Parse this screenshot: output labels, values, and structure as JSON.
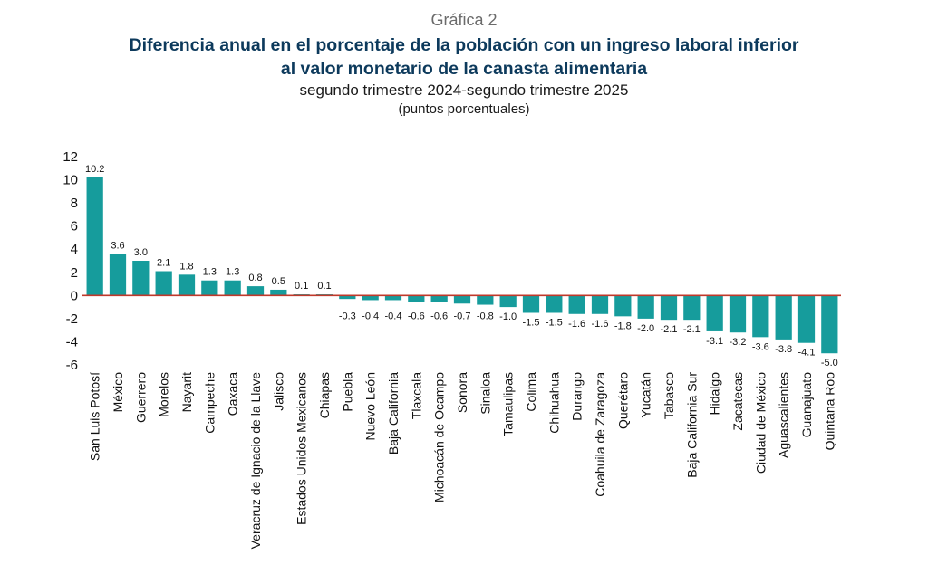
{
  "header": {
    "kicker": "Gráfica 2",
    "title_line1": "Diferencia anual en el porcentaje de la población con un ingreso laboral inferior",
    "title_line2": "al valor monetario de la canasta alimentaria",
    "subtitle_line1": "segundo trimestre 2024-segundo trimestre 2025",
    "subtitle_line2": "(puntos porcentuales)"
  },
  "colors": {
    "bar": "#169c9c",
    "zero_line": "#c0392b",
    "title": "#0d3a5c"
  },
  "chart_data": {
    "type": "bar",
    "title": "Diferencia anual en el porcentaje de la población con un ingreso laboral inferior al valor monetario de la canasta alimentaria",
    "subtitle": "segundo trimestre 2024-segundo trimestre 2025",
    "ylabel": "(puntos porcentuales)",
    "xlabel": "",
    "ylim": [
      -6,
      12
    ],
    "yticks": [
      12,
      10,
      8,
      6,
      4,
      2,
      0,
      -2,
      -4,
      -6
    ],
    "grid": false,
    "legend": "none",
    "categories": [
      "San Luis Potosí",
      "México",
      "Guerrero",
      "Morelos",
      "Nayarit",
      "Campeche",
      "Oaxaca",
      "Veracruz de Ignacio de la Llave",
      "Jalisco",
      "Estados Unidos Mexicanos",
      "Chiapas",
      "Puebla",
      "Nuevo León",
      "Baja California",
      "Tlaxcala",
      "Michoacán de Ocampo",
      "Sonora",
      "Sinaloa",
      "Tamaulipas",
      "Colima",
      "Chihuahua",
      "Durango",
      "Coahuila de Zaragoza",
      "Querétaro",
      "Yucatán",
      "Tabasco",
      "Baja California Sur",
      "Hidalgo",
      "Zacatecas",
      "Ciudad de México",
      "Aguascalientes",
      "Guanajuato",
      "Quintana Roo"
    ],
    "values": [
      10.2,
      3.6,
      3.0,
      2.1,
      1.8,
      1.3,
      1.3,
      0.8,
      0.5,
      0.1,
      0.1,
      -0.3,
      -0.4,
      -0.4,
      -0.6,
      -0.6,
      -0.7,
      -0.8,
      -1.0,
      -1.5,
      -1.5,
      -1.6,
      -1.6,
      -1.8,
      -2.0,
      -2.1,
      -2.1,
      -3.1,
      -3.2,
      -3.6,
      -3.8,
      -4.1,
      -5.0
    ],
    "value_labels": [
      "10.2",
      "3.6",
      "3.0",
      "2.1",
      "1.8",
      "1.3",
      "1.3",
      "0.8",
      "0.5",
      "0.1",
      "0.1",
      "-0.3",
      "-0.4",
      "-0.4",
      "-0.6",
      "-0.6",
      "-0.7",
      "-0.8",
      "-1.0",
      "-1.5",
      "-1.5",
      "-1.6",
      "-1.6",
      "-1.8",
      "-2.0",
      "-2.1",
      "-2.1",
      "-3.1",
      "-3.2",
      "-3.6",
      "-3.8",
      "-4.1",
      "-5.0"
    ]
  }
}
